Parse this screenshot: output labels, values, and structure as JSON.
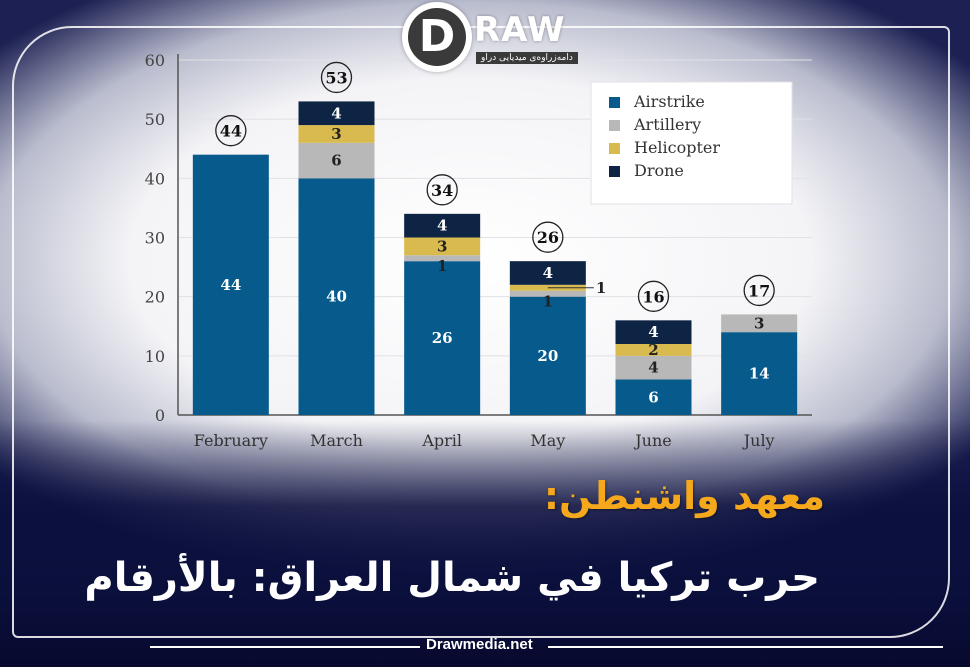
{
  "brand": {
    "logo_letter": "D",
    "logo_word": "RAW",
    "logo_subtitle": "دامەزراوەی میدیایی دراو",
    "site": "Drawmedia.net"
  },
  "source_line": "معهد واشنطن:",
  "headline": "حرب تركيا في شمال العراق: بالأرقام",
  "chart_data": {
    "type": "bar",
    "stacked": true,
    "categories": [
      "February",
      "March",
      "April",
      "May",
      "June",
      "July"
    ],
    "series": [
      {
        "name": "Airstrike",
        "color": "#075a8c",
        "values": [
          44,
          40,
          26,
          20,
          6,
          14
        ]
      },
      {
        "name": "Artillery",
        "color": "#b8b8b8",
        "values": [
          0,
          6,
          1,
          1,
          4,
          3
        ]
      },
      {
        "name": "Helicopter",
        "color": "#d8ba4e",
        "values": [
          0,
          3,
          3,
          1,
          2,
          0
        ]
      },
      {
        "name": "Drone",
        "color": "#0e2444",
        "values": [
          0,
          4,
          4,
          4,
          4,
          0
        ]
      }
    ],
    "totals": [
      44,
      53,
      34,
      26,
      16,
      17
    ],
    "ylim": [
      0,
      60
    ],
    "yticks": [
      0,
      10,
      20,
      30,
      40,
      50,
      60
    ],
    "grid": true,
    "legend_position": "top-right"
  }
}
